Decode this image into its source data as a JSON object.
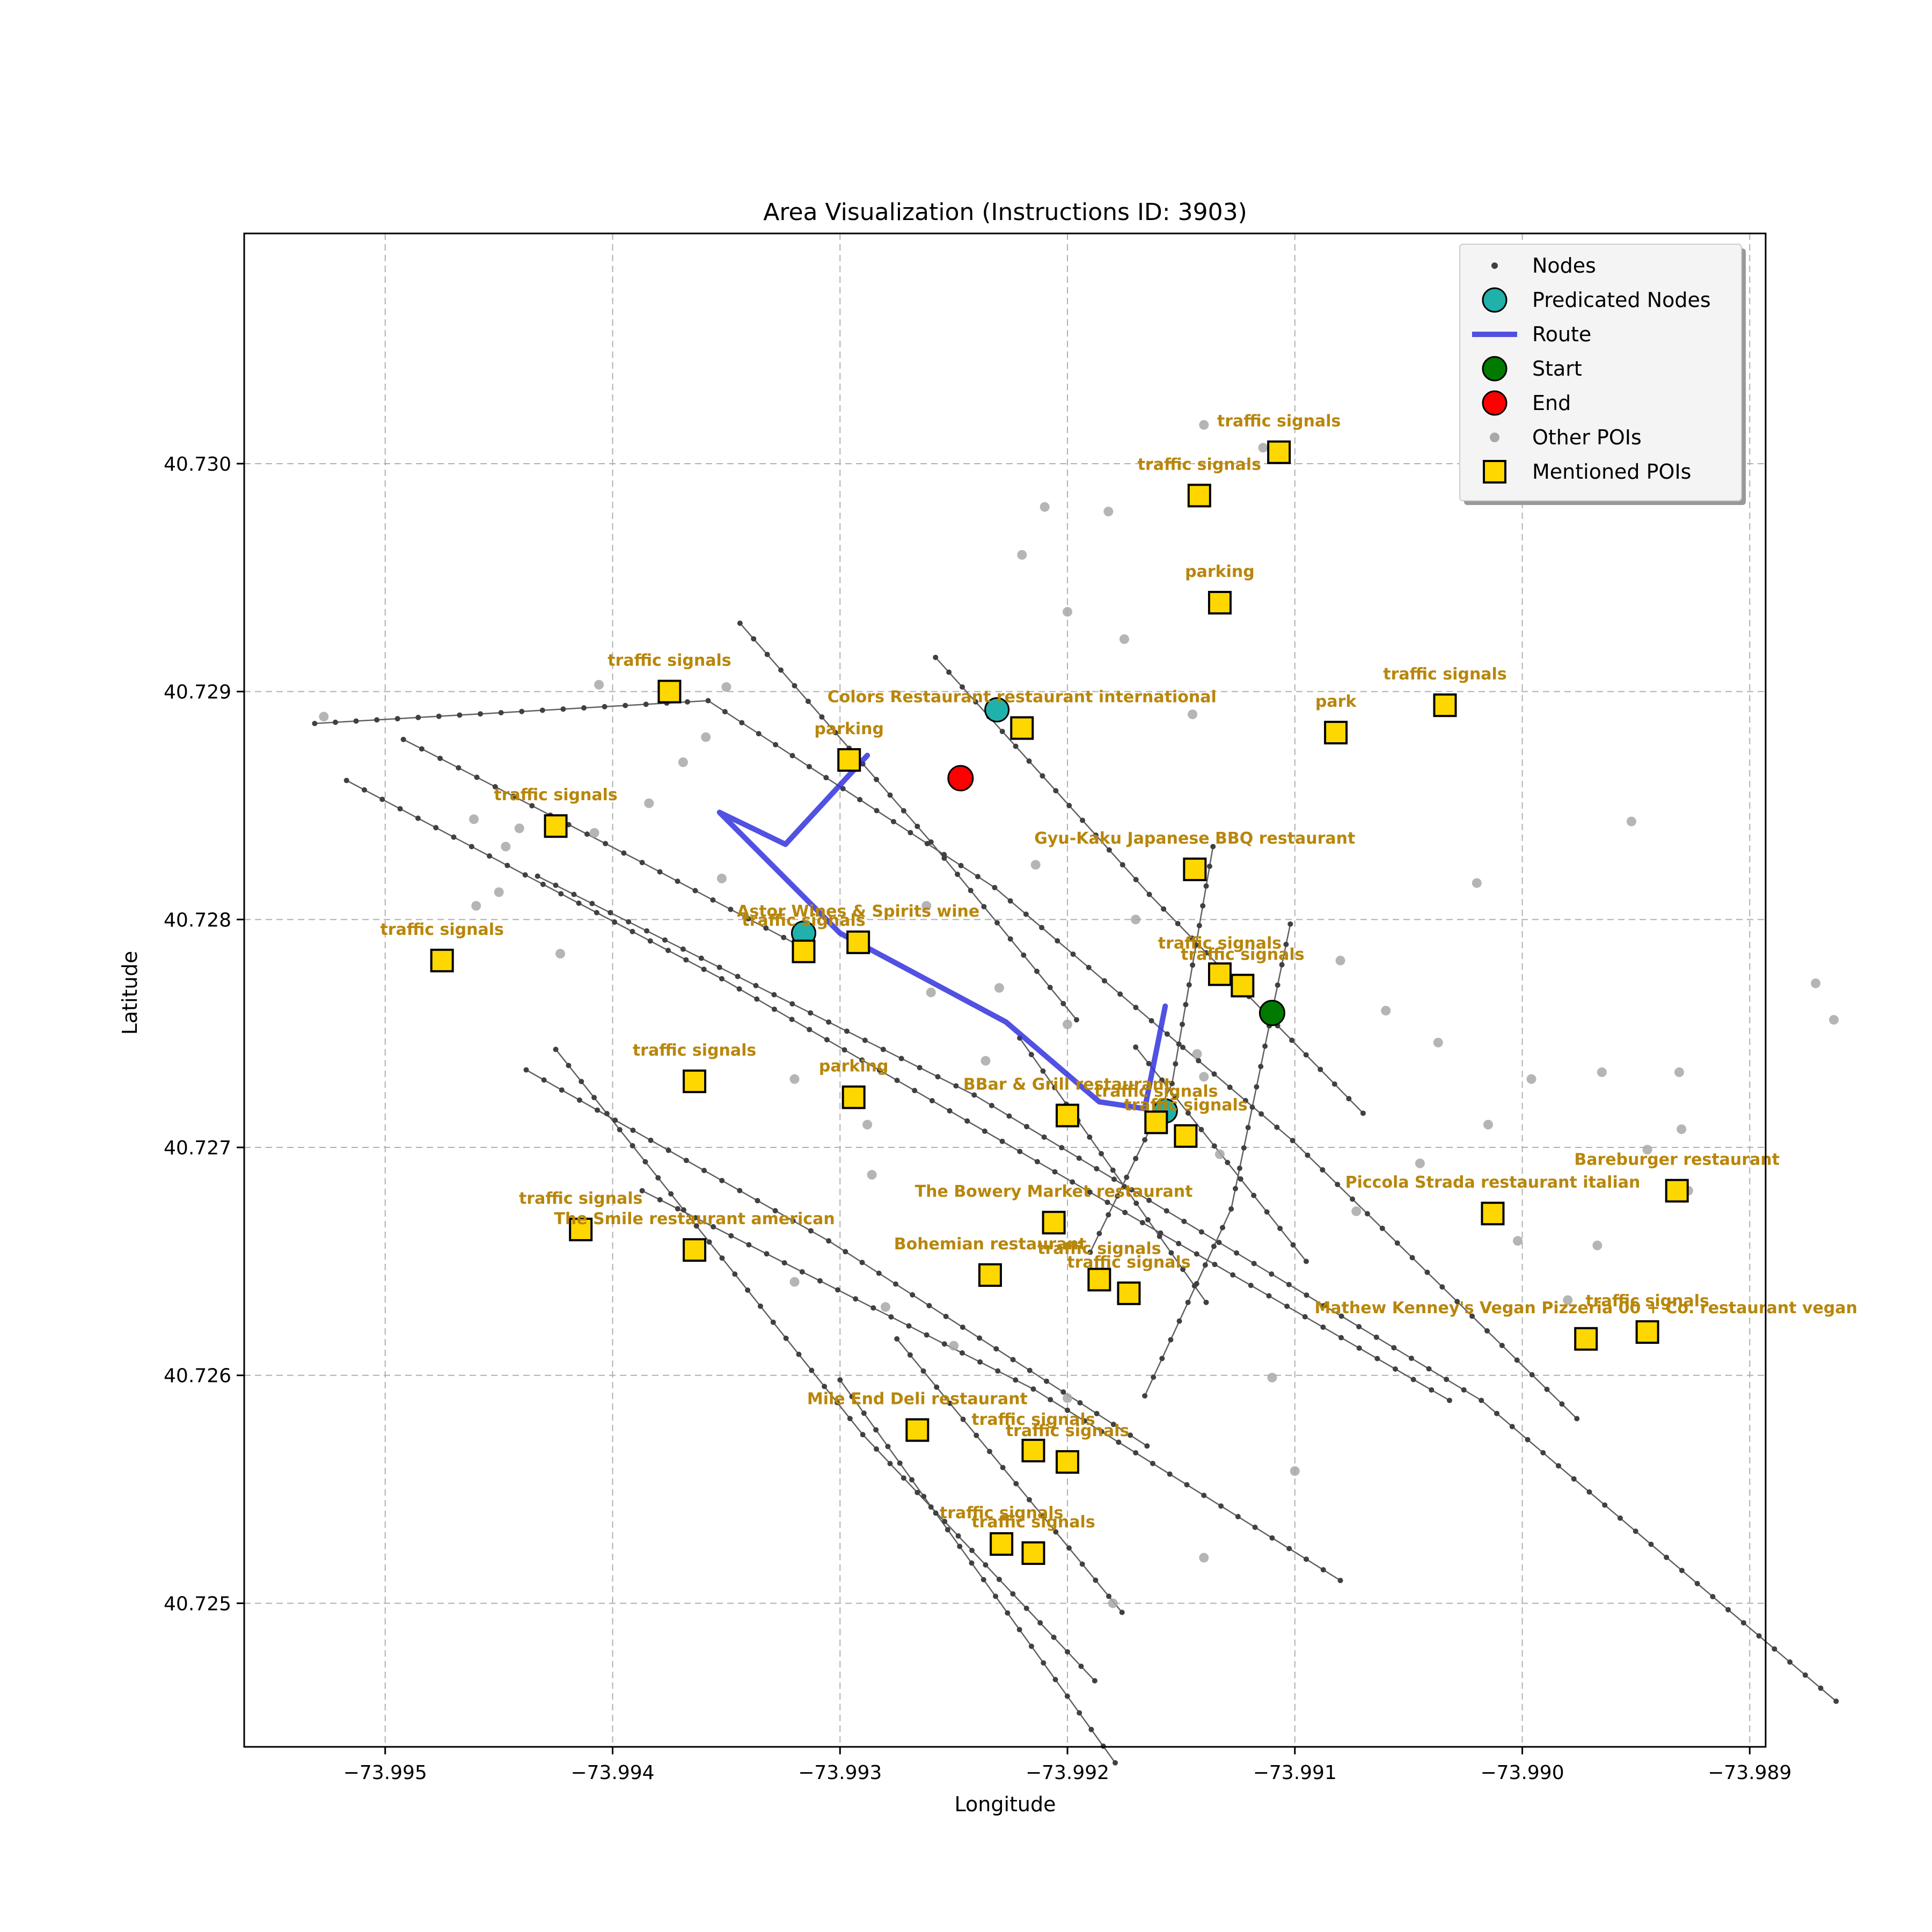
{
  "chart_data": {
    "type": "map",
    "title": "Area Visualization (Instructions ID: 3903)",
    "xlabel": "Longitude",
    "ylabel": "Latitude",
    "xlim": [
      -73.99562,
      -73.98893
    ],
    "ylim": [
      40.72437,
      40.73101
    ],
    "xticks": [
      -73.995,
      -73.994,
      -73.993,
      -73.992,
      -73.991,
      -73.99,
      -73.989
    ],
    "xtick_labels": [
      "−73.995",
      "−73.994",
      "−73.993",
      "−73.992",
      "−73.991",
      "−73.990",
      "−73.989"
    ],
    "yticks": [
      40.725,
      40.726,
      40.727,
      40.728,
      40.729,
      40.73
    ],
    "ytick_labels": [
      "40.725",
      "40.726",
      "40.727",
      "40.728",
      "40.729",
      "40.730"
    ],
    "grid": true,
    "legend": {
      "placement": "top-right",
      "entries": [
        {
          "label": "Nodes",
          "kind": "node"
        },
        {
          "label": "Predicated Nodes",
          "kind": "predicated"
        },
        {
          "label": "Route",
          "kind": "route"
        },
        {
          "label": "Start",
          "kind": "start"
        },
        {
          "label": "End",
          "kind": "end"
        },
        {
          "label": "Other POIs",
          "kind": "other"
        },
        {
          "label": "Mentioned POIs",
          "kind": "mentioned"
        }
      ]
    },
    "colors": {
      "node": "#404040",
      "edge": "#606060",
      "route": "#3333dd",
      "predicated": "#20b2aa",
      "start": "#007a00",
      "end": "#ff0000",
      "other_poi": "#a8a8a8",
      "mentioned_poi": "#ffd700",
      "poi_label": "#b8860b"
    },
    "streets": [
      [
        [
          -73.99531,
          40.72886
        ],
        [
          -73.99358,
          40.72896
        ],
        [
          -73.99232,
          40.72814
        ],
        [
          -73.99101,
          40.72703
        ],
        [
          -73.98976,
          40.72581
        ]
      ],
      [
        [
          -73.99433,
          40.72819
        ],
        [
          -73.99241,
          40.72723
        ],
        [
          -73.99018,
          40.72589
        ],
        [
          -73.98862,
          40.72457
        ]
      ],
      [
        [
          -73.99387,
          40.72681
        ],
        [
          -73.99215,
          40.72594
        ],
        [
          -73.9908,
          40.7251
        ]
      ],
      [
        [
          -73.99517,
          40.72861
        ],
        [
          -73.99352,
          40.72774
        ],
        [
          -73.99167,
          40.72667
        ],
        [
          -73.99032,
          40.72589
        ]
      ],
      [
        [
          -73.99438,
          40.72734
        ],
        [
          -73.99305,
          40.72659
        ],
        [
          -73.99165,
          40.72569
        ]
      ],
      [
        [
          -73.99492,
          40.72879
        ],
        [
          -73.99387,
          40.72825
        ],
        [
          -73.99317,
          40.72788
        ]
      ],
      [
        [
          -73.99344,
          40.7293
        ],
        [
          -73.9926,
          40.72834
        ],
        [
          -73.99196,
          40.72756
        ]
      ],
      [
        [
          -73.99258,
          40.72915
        ],
        [
          -73.99164,
          40.72811
        ],
        [
          -73.9907,
          40.72715
        ]
      ],
      [
        [
          -73.99425,
          40.72743
        ],
        [
          -73.9929,
          40.72574
        ],
        [
          -73.99188,
          40.72466
        ]
      ],
      [
        [
          -73.993,
          40.72598
        ],
        [
          -73.99179,
          40.7243
        ]
      ],
      [
        [
          -73.99275,
          40.72616
        ],
        [
          -73.99176,
          40.72496
        ]
      ],
      [
        [
          -73.99136,
          40.72832
        ],
        [
          -73.99154,
          40.72728
        ],
        [
          -73.9919,
          40.72654
        ]
      ],
      [
        [
          -73.99102,
          40.72798
        ],
        [
          -73.99128,
          40.72673
        ],
        [
          -73.99166,
          40.72591
        ]
      ],
      [
        [
          -73.99221,
          40.72748
        ],
        [
          -73.99139,
          40.72632
        ]
      ],
      [
        [
          -73.9917,
          40.72744
        ],
        [
          -73.99095,
          40.7265
        ]
      ]
    ],
    "route": [
      [
        -73.99157,
        40.72762
      ],
      [
        -73.99166,
        40.72717
      ],
      [
        -73.99186,
        40.7272
      ],
      [
        -73.99227,
        40.72755
      ],
      [
        -73.993,
        40.72794
      ],
      [
        -73.99353,
        40.72847
      ],
      [
        -73.99324,
        40.72833
      ],
      [
        -73.99288,
        40.72872
      ]
    ],
    "predicated_nodes": [
      [
        -73.99316,
        40.72794
      ],
      [
        -73.99231,
        40.72892
      ],
      [
        -73.99157,
        40.72716
      ]
    ],
    "start": [
      -73.9911,
      40.72759
    ],
    "end": [
      -73.99247,
      40.72862
    ],
    "other_pois": [
      [
        -73.99527,
        40.72889
      ],
      [
        -73.99406,
        40.72903
      ],
      [
        -73.9935,
        40.72902
      ],
      [
        -73.99359,
        40.7288
      ],
      [
        -73.99369,
        40.72869
      ],
      [
        -73.99461,
        40.72844
      ],
      [
        -73.99441,
        40.7284
      ],
      [
        -73.99447,
        40.72832
      ],
      [
        -73.99384,
        40.72851
      ],
      [
        -73.99408,
        40.72838
      ],
      [
        -73.9945,
        40.72812
      ],
      [
        -73.9946,
        40.72806
      ],
      [
        -73.99423,
        40.72785
      ],
      [
        -73.99352,
        40.72818
      ],
      [
        -73.99262,
        40.72806
      ],
      [
        -73.99214,
        40.72824
      ],
      [
        -73.9917,
        40.728
      ],
      [
        -73.9906,
        40.7276
      ],
      [
        -73.9914,
        40.72731
      ],
      [
        -73.992,
        40.72754
      ],
      [
        -73.9923,
        40.7277
      ],
      [
        -73.9926,
        40.72768
      ],
      [
        -73.9932,
        40.7273
      ],
      [
        -73.99288,
        40.7271
      ],
      [
        -73.99286,
        40.72688
      ],
      [
        -73.99236,
        40.72738
      ],
      [
        -73.99143,
        40.72741
      ],
      [
        -73.99133,
        40.72697
      ],
      [
        -73.9908,
        40.72782
      ],
      [
        -73.99037,
        40.72746
      ],
      [
        -73.99015,
        40.7271
      ],
      [
        -73.99002,
        40.72659
      ],
      [
        -73.9898,
        40.72633
      ],
      [
        -73.98967,
        40.72657
      ],
      [
        -73.98945,
        40.72699
      ],
      [
        -73.98927,
        40.72681
      ],
      [
        -73.9893,
        40.72708
      ],
      [
        -73.98871,
        40.72772
      ],
      [
        -73.98863,
        40.72756
      ],
      [
        -73.98965,
        40.72733
      ],
      [
        -73.98931,
        40.72733
      ],
      [
        -73.98996,
        40.7273
      ],
      [
        -73.99045,
        40.72693
      ],
      [
        -73.99073,
        40.72672
      ],
      [
        -73.9911,
        40.72599
      ],
      [
        -73.991,
        40.72558
      ],
      [
        -73.9914,
        40.7252
      ],
      [
        -73.9918,
        40.725
      ],
      [
        -73.992,
        40.7259
      ],
      [
        -73.9925,
        40.72613
      ],
      [
        -73.9928,
        40.7263
      ],
      [
        -73.9932,
        40.72641
      ],
      [
        -73.9902,
        40.72816
      ],
      [
        -73.98952,
        40.72843
      ],
      [
        -73.99145,
        40.7289
      ],
      [
        -73.99175,
        40.72923
      ],
      [
        -73.992,
        40.72935
      ],
      [
        -73.99182,
        40.72979
      ],
      [
        -73.9921,
        40.72981
      ],
      [
        -73.9922,
        40.7296
      ],
      [
        -73.9914,
        40.73017
      ],
      [
        -73.99114,
        40.73007
      ]
    ],
    "mentioned_pois": [
      {
        "label": "traffic signals",
        "lon": -73.99107,
        "lat": 40.73005
      },
      {
        "label": "traffic signals",
        "lon": -73.99142,
        "lat": 40.72986
      },
      {
        "label": "parking",
        "lon": -73.99133,
        "lat": 40.72939
      },
      {
        "label": "traffic signals",
        "lon": -73.99375,
        "lat": 40.729
      },
      {
        "label": "traffic signals",
        "lon": -73.99034,
        "lat": 40.72894
      },
      {
        "label": "park",
        "lon": -73.99082,
        "lat": 40.72882
      },
      {
        "label": "Colors Restaurant restaurant international",
        "lon": -73.9922,
        "lat": 40.72884
      },
      {
        "label": "parking",
        "lon": -73.99296,
        "lat": 40.7287
      },
      {
        "label": "traffic signals",
        "lon": -73.99425,
        "lat": 40.72841
      },
      {
        "label": "Gyu-Kaku Japanese BBQ restaurant",
        "lon": -73.99144,
        "lat": 40.72822
      },
      {
        "label": "Astor Wines & Spirits wine",
        "lon": -73.99292,
        "lat": 40.7279
      },
      {
        "label": "traffic signals",
        "lon": -73.99316,
        "lat": 40.72786
      },
      {
        "label": "traffic signals",
        "lon": -73.99475,
        "lat": 40.72782
      },
      {
        "label": "traffic signals",
        "lon": -73.99133,
        "lat": 40.72776
      },
      {
        "label": "traffic signals",
        "lon": -73.99123,
        "lat": 40.72771
      },
      {
        "label": "traffic signals",
        "lon": -73.99364,
        "lat": 40.72729
      },
      {
        "label": "parking",
        "lon": -73.99294,
        "lat": 40.72722
      },
      {
        "label": "BBar & Grill restaurant",
        "lon": -73.992,
        "lat": 40.72714
      },
      {
        "label": "traffic signals",
        "lon": -73.99161,
        "lat": 40.72711
      },
      {
        "label": "traffic signals",
        "lon": -73.99148,
        "lat": 40.72705
      },
      {
        "label": "Bareburger restaurant",
        "lon": -73.98932,
        "lat": 40.72681
      },
      {
        "label": "Piccola Strada restaurant italian",
        "lon": -73.99013,
        "lat": 40.72671
      },
      {
        "label": "The Bowery Market restaurant",
        "lon": -73.99206,
        "lat": 40.72667
      },
      {
        "label": "traffic signals",
        "lon": -73.99414,
        "lat": 40.72664
      },
      {
        "label": "The Smile restaurant american",
        "lon": -73.99364,
        "lat": 40.72655
      },
      {
        "label": "Bohemian restaurant",
        "lon": -73.99234,
        "lat": 40.72644
      },
      {
        "label": "traffic signals",
        "lon": -73.99186,
        "lat": 40.72642
      },
      {
        "label": "traffic signals",
        "lon": -73.99173,
        "lat": 40.72636
      },
      {
        "label": "traffic signals",
        "lon": -73.98945,
        "lat": 40.72619
      },
      {
        "label": "Mathew Kenney's Vegan Pizzeria 00 + Co. restaurant vegan",
        "lon": -73.98972,
        "lat": 40.72616
      },
      {
        "label": "Mile End Deli restaurant",
        "lon": -73.99266,
        "lat": 40.72576
      },
      {
        "label": "traffic signals",
        "lon": -73.99215,
        "lat": 40.72567
      },
      {
        "label": "traffic signals",
        "lon": -73.992,
        "lat": 40.72562
      },
      {
        "label": "traffic signals",
        "lon": -73.99229,
        "lat": 40.72526
      },
      {
        "label": "traffic signals",
        "lon": -73.99215,
        "lat": 40.72522
      }
    ]
  }
}
